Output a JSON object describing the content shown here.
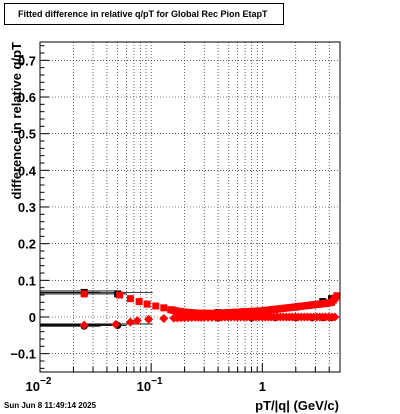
{
  "chart_data": {
    "type": "scatter",
    "title": "Fitted difference in relative q/pT for Global Rec Pion EtapT",
    "xlabel": "pT/|q| (GeV/c)",
    "ylabel": "difference in relative q/pT",
    "xscale": "log",
    "xlim": [
      0.01,
      5
    ],
    "ylim": [
      -0.15,
      0.75
    ],
    "grid": true,
    "x_ticks": [
      {
        "value": 0.01,
        "base": "10",
        "exp": "−2"
      },
      {
        "value": 0.1,
        "base": "10",
        "exp": "−1"
      },
      {
        "value": 1,
        "base": "1",
        "exp": ""
      }
    ],
    "y_ticks": [
      {
        "value": -0.1,
        "label": "−0.1"
      },
      {
        "value": 0,
        "label": "0"
      },
      {
        "value": 0.1,
        "label": "0.1"
      },
      {
        "value": 0.2,
        "label": "0.2"
      },
      {
        "value": 0.3,
        "label": "0.3"
      },
      {
        "value": 0.4,
        "label": "0.4"
      },
      {
        "value": 0.5,
        "label": "0.5"
      },
      {
        "value": 0.6,
        "label": "0.6"
      },
      {
        "value": 0.7,
        "label": "0.7"
      }
    ],
    "series": [
      {
        "marker": "square",
        "color": "#000000",
        "x": [
          0.025,
          0.05,
          0.4,
          0.8,
          1.3,
          2.0,
          2.8,
          3.5,
          4.2
        ],
        "y": [
          0.067,
          0.063,
          0.012,
          0.015,
          0.02,
          0.027,
          0.033,
          0.042,
          0.05
        ],
        "xerr": [
          0.01,
          0.01,
          0,
          0,
          0,
          0,
          0,
          0,
          0
        ]
      },
      {
        "marker": "circle",
        "color": "#000000",
        "x": [
          0.025,
          0.05,
          0.4,
          0.8,
          1.3,
          2.0,
          2.8,
          3.5,
          4.2
        ],
        "y": [
          -0.025,
          -0.023,
          -0.003,
          -0.003,
          -0.002,
          -0.002,
          -0.002,
          -0.002,
          -0.002
        ],
        "xerr": [
          0.01,
          0.01,
          0,
          0,
          0,
          0,
          0,
          0,
          0
        ]
      },
      {
        "marker": "square",
        "color": "#ff0000",
        "x": [
          0.025,
          0.052,
          0.065,
          0.078,
          0.092,
          0.11,
          0.13,
          0.15,
          0.17,
          0.19,
          0.22,
          0.25,
          0.29,
          0.33,
          0.38,
          0.44,
          0.5,
          0.58,
          0.66,
          0.76,
          0.87,
          1.0,
          1.15,
          1.3,
          1.5,
          1.7,
          1.95,
          2.2,
          2.5,
          2.85,
          3.25,
          3.7,
          4.2,
          4.7
        ],
        "y": [
          0.063,
          0.06,
          0.05,
          0.042,
          0.035,
          0.03,
          0.025,
          0.02,
          0.016,
          0.014,
          0.012,
          0.011,
          0.01,
          0.01,
          0.01,
          0.011,
          0.012,
          0.013,
          0.014,
          0.015,
          0.016,
          0.017,
          0.019,
          0.021,
          0.023,
          0.025,
          0.027,
          0.029,
          0.031,
          0.033,
          0.035,
          0.037,
          0.04,
          0.058
        ]
      },
      {
        "marker": "diamond",
        "color": "#ff0000",
        "x": [
          0.025,
          0.048,
          0.065,
          0.075,
          0.095,
          0.13,
          0.16,
          0.2,
          0.25,
          0.3,
          0.38,
          0.46,
          0.56,
          0.68,
          0.82,
          1.0,
          1.2,
          1.45,
          1.75,
          2.1,
          2.55,
          3.1,
          3.7,
          4.5
        ],
        "y": [
          -0.022,
          -0.02,
          -0.014,
          -0.01,
          -0.006,
          -0.004,
          -0.003,
          -0.002,
          -0.001,
          -0.001,
          -0.001,
          0.0,
          0.0,
          0.0,
          0.0,
          0.0,
          0.0,
          0.0,
          0.0,
          0.0,
          0.0,
          0.0,
          0.0,
          0.0
        ]
      }
    ]
  },
  "footer": {
    "timestamp": "Sun Jun  8 11:49:14 2025"
  }
}
